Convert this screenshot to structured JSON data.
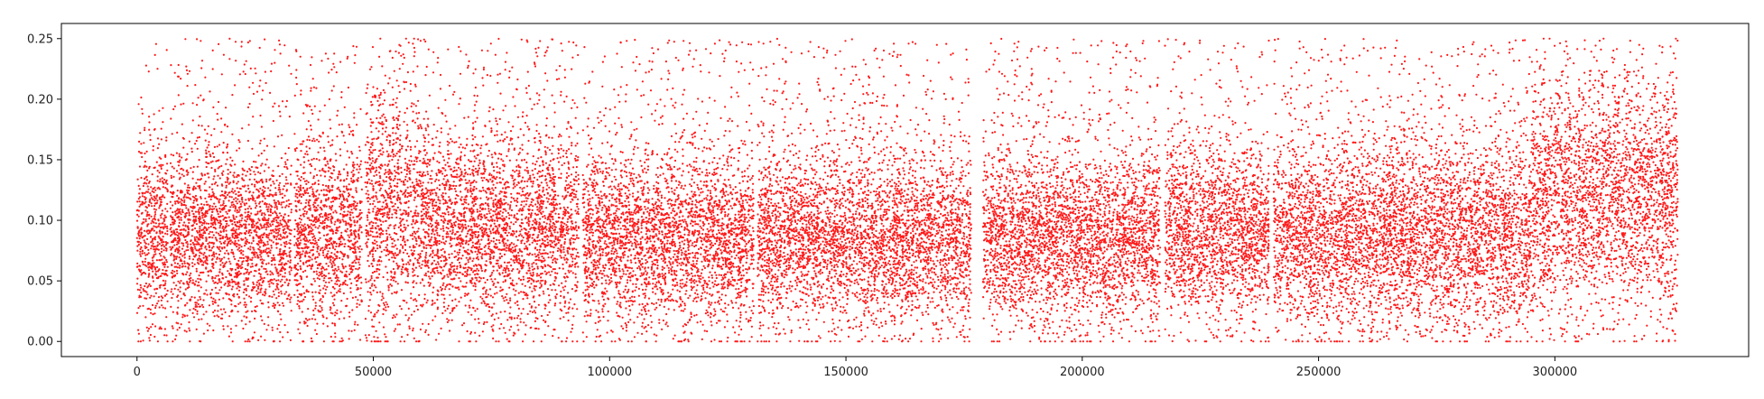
{
  "chart_data": {
    "type": "scatter",
    "title": "",
    "xlabel": "",
    "ylabel": "",
    "xlim": [
      -16000,
      341000
    ],
    "ylim": [
      -0.0125,
      0.2625
    ],
    "x_ticks": [
      0,
      50000,
      100000,
      150000,
      200000,
      250000,
      300000
    ],
    "x_tick_labels": [
      "0",
      "50000",
      "100000",
      "150000",
      "200000",
      "250000",
      "300000"
    ],
    "y_ticks": [
      0.0,
      0.05,
      0.1,
      0.15,
      0.2,
      0.25
    ],
    "y_tick_labels": [
      "0.00",
      "0.05",
      "0.10",
      "0.15",
      "0.20",
      "0.25"
    ],
    "grid": false,
    "legend": "none",
    "marker_color": "#ff1a1a",
    "x_range_of_points": [
      0,
      326000
    ],
    "y_range_of_points": [
      0.0,
      0.25
    ],
    "gaps_in_x": [
      6800,
      33000,
      48000,
      94000,
      131000,
      177000,
      217000,
      240000
    ],
    "density_segments": [
      {
        "x": [
          0,
          6500
        ],
        "y_center": 0.09,
        "y_spread": 0.055
      },
      {
        "x": [
          7000,
          32700
        ],
        "y_center": 0.085,
        "y_spread": 0.05
      },
      {
        "x": [
          33300,
          47600
        ],
        "y_center": 0.09,
        "y_spread": 0.05
      },
      {
        "x": [
          48300,
          60000
        ],
        "y_center": 0.11,
        "y_spread": 0.07
      },
      {
        "x": [
          60000,
          93500
        ],
        "y_center": 0.095,
        "y_spread": 0.055
      },
      {
        "x": [
          94300,
          130500
        ],
        "y_center": 0.085,
        "y_spread": 0.05
      },
      {
        "x": [
          131300,
          176500
        ],
        "y_center": 0.085,
        "y_spread": 0.05
      },
      {
        "x": [
          179000,
          216500
        ],
        "y_center": 0.085,
        "y_spread": 0.05
      },
      {
        "x": [
          217500,
          239500
        ],
        "y_center": 0.09,
        "y_spread": 0.05
      },
      {
        "x": [
          240500,
          295000
        ],
        "y_center": 0.09,
        "y_spread": 0.055
      },
      {
        "x": [
          295000,
          326000
        ],
        "y_center": 0.12,
        "y_spread": 0.065
      }
    ]
  }
}
